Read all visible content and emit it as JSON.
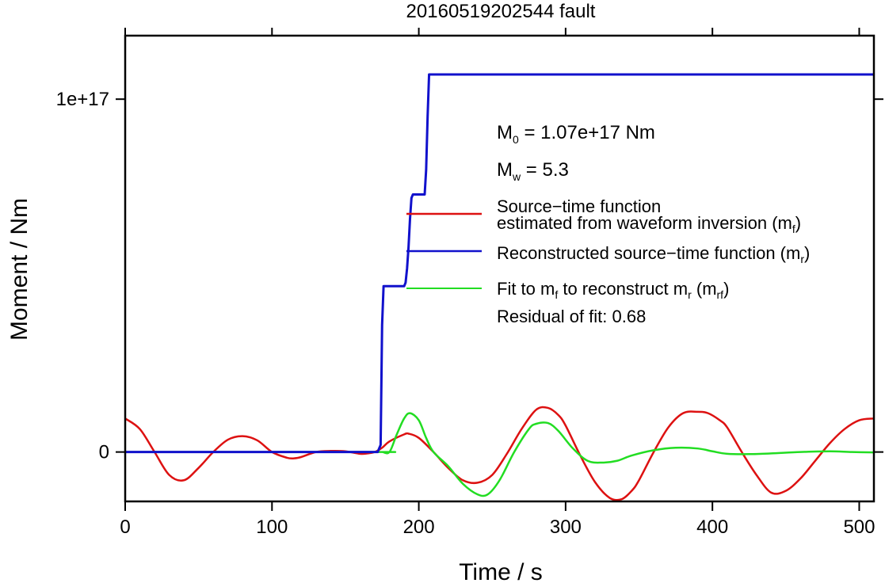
{
  "chart_data": {
    "type": "line",
    "title": "20160519202544 fault",
    "xlabel": "Time / s",
    "ylabel": "Moment / Nm",
    "xlim": [
      0,
      510
    ],
    "ylim": [
      -1.4e+16,
      1.18e+17
    ],
    "x_ticks": [
      0,
      100,
      200,
      300,
      400,
      500
    ],
    "x_tick_labels": [
      "0",
      "100",
      "200",
      "300",
      "400",
      "500"
    ],
    "y_ticks": [
      0,
      1e+17
    ],
    "y_tick_labels": [
      "0",
      "1e+17"
    ],
    "grid": false,
    "legend_position": "right",
    "colors": {
      "mf": "#dd1111",
      "mr": "#1111cc",
      "mrf": "#22dd22",
      "axis": "#000000"
    },
    "annotations": {
      "m0": {
        "symbol": "M",
        "sub": "0",
        "text": " = 1.07e+17 Nm"
      },
      "mw": {
        "symbol": "M",
        "sub": "w",
        "text": " = 5.3"
      },
      "residual": "Residual of fit: 0.68"
    },
    "legend": [
      {
        "key": "mf",
        "line1": "Source−time function",
        "line2_pre": "estimated from waveform inversion (m",
        "line2_sub": "f",
        "line2_post": ")"
      },
      {
        "key": "mr",
        "pre": "Reconstructed source−time function (m",
        "sub": "r",
        "post": ")"
      },
      {
        "key": "mrf",
        "pre": "Fit to m",
        "sub1": "f",
        "mid": " to reconstruct m",
        "sub2": "r",
        "mid2": " (m",
        "sub3": "rf",
        "post": ")"
      }
    ],
    "series": [
      {
        "key": "mr",
        "x": [
          0,
          172,
          174,
          175,
          176,
          190,
          191,
          192,
          193,
          194,
          195,
          196,
          204,
          205,
          206,
          207,
          510
        ],
        "y": [
          0,
          0,
          2000000000000000.0,
          3.6e+16,
          4.7e+16,
          4.7e+16,
          4.8e+16,
          5.2e+16,
          5.8e+16,
          6.6e+16,
          7.2e+16,
          7.3e+16,
          7.3e+16,
          8e+16,
          9.5e+16,
          1.07e+17,
          1.07e+17
        ]
      },
      {
        "key": "mf",
        "x": [
          0,
          10,
          20,
          30,
          40,
          50,
          60,
          70,
          80,
          90,
          100,
          110,
          115,
          120,
          130,
          140,
          150,
          160,
          165,
          170,
          175,
          180,
          190,
          193,
          200,
          210,
          220,
          230,
          240,
          250,
          260,
          270,
          280,
          288,
          295,
          300,
          310,
          320,
          330,
          338,
          345,
          350,
          360,
          370,
          380,
          390,
          397,
          405,
          410,
          420,
          430,
          440,
          450,
          460,
          470,
          480,
          490,
          500,
          510
        ],
        "y": [
          9500000000000000.0,
          6500000000000000.0,
          0,
          -6500000000000000.0,
          -8000000000000000.0,
          -4500000000000000.0,
          0,
          3500000000000000.0,
          4500000000000000.0,
          3300000000000000.0,
          0,
          -1600000000000000.0,
          -1800000000000000.0,
          -1400000000000000.0,
          0,
          300000000000000.0,
          200000000000000.0,
          -500000000000000.0,
          -400000000000000.0,
          0,
          1200000000000000.0,
          3000000000000000.0,
          5000000000000000.0,
          5200000000000000.0,
          4000000000000000.0,
          0,
          -4500000000000000.0,
          -8000000000000000.0,
          -8700000000000000.0,
          -6500000000000000.0,
          -500000000000000.0,
          6500000000000000.0,
          1.2e+16,
          1.25e+16,
          1.05e+16,
          7500000000000000.0,
          -1000000000000000.0,
          -8500000000000000.0,
          -1.3e+16,
          -1.34e+16,
          -1.1e+16,
          -8000000000000000.0,
          0,
          7000000000000000.0,
          1.1e+16,
          1.14e+16,
          1.1e+16,
          9000000000000000.0,
          7000000000000000.0,
          0,
          -6500000000000000.0,
          -1.15e+16,
          -1.1e+16,
          -7500000000000000.0,
          -2500000000000000.0,
          2500000000000000.0,
          6500000000000000.0,
          9000000000000000.0,
          9500000000000000.0
        ]
      },
      {
        "key": "mrf",
        "x": [
          0,
          170,
          175,
          180,
          185,
          190,
          194,
          200,
          205,
          210,
          220,
          230,
          240,
          247,
          255,
          265,
          275,
          280,
          288,
          295,
          305,
          315,
          325,
          335,
          345,
          360,
          375,
          390,
          400,
          410,
          425,
          440,
          460,
          480,
          495,
          510
        ],
        "y": [
          0,
          0,
          0,
          0,
          5000000000000000.0,
          9500000000000000.0,
          1.1e+16,
          9000000000000000.0,
          4000000000000000.0,
          0,
          -4000000000000000.0,
          -9000000000000000.0,
          -1.2e+16,
          -1.2e+16,
          -8000000000000000.0,
          0,
          6500000000000000.0,
          8000000000000000.0,
          8200000000000000.0,
          6000000000000000.0,
          1000000000000000.0,
          -2500000000000000.0,
          -3000000000000000.0,
          -2500000000000000.0,
          -1000000000000000.0,
          500000000000000.0,
          1200000000000000.0,
          1000000000000000.0,
          200000000000000.0,
          -500000000000000.0,
          -600000000000000.0,
          -400000000000000.0,
          0,
          200000000000000.0,
          0,
          -100000000000000.0
        ]
      }
    ]
  }
}
